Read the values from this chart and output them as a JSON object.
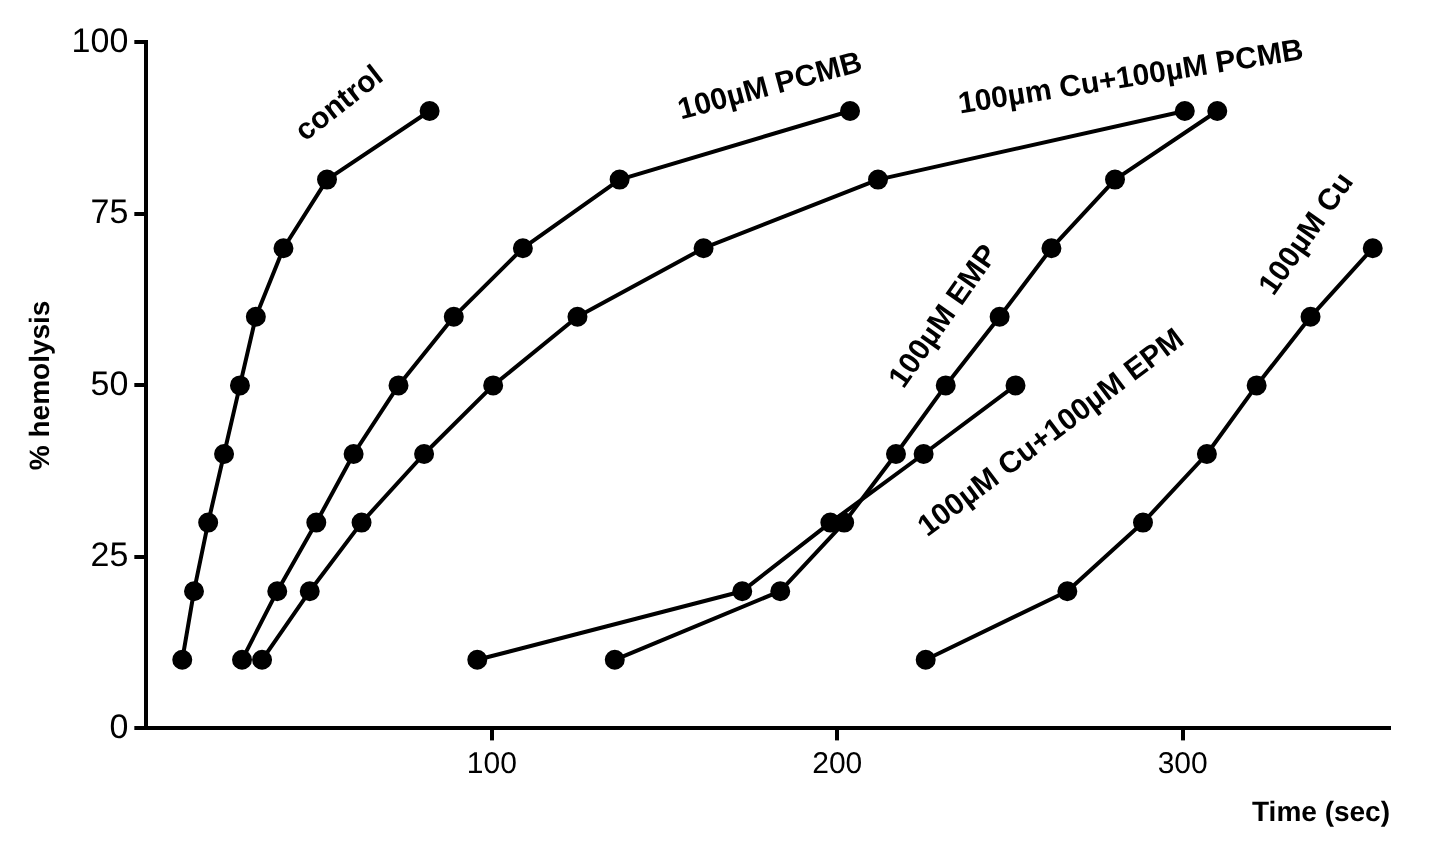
{
  "chart_data": {
    "type": "line",
    "xlabel": "Time (sec)",
    "ylabel": "% hemolysis",
    "xlim": [
      0,
      360
    ],
    "ylim": [
      0,
      100
    ],
    "xticks": [
      100,
      200,
      300
    ],
    "yticks": [
      0,
      25,
      50,
      75,
      100
    ],
    "grid": false,
    "legend": false,
    "marker": "circle",
    "line_style": "solid",
    "series": [
      {
        "name": "control",
        "color": "#000000",
        "x": [
          10.4,
          13.8,
          17.9,
          22.5,
          27.1,
          31.7,
          39.7,
          52.3,
          82
        ],
        "values": [
          10,
          20,
          30,
          40,
          50,
          60,
          70,
          80,
          90
        ]
      },
      {
        "name": "100µM PCMB",
        "color": "#000000",
        "x": [
          27.7,
          37.9,
          49.2,
          60,
          73,
          89,
          109,
          137,
          203.7
        ],
        "values": [
          10,
          20,
          30,
          40,
          50,
          60,
          70,
          80,
          90
        ]
      },
      {
        "name": "100µm Cu+100µM PCMB",
        "color": "#000000",
        "x": [
          33.5,
          47.3,
          62.3,
          80.4,
          100.4,
          124.8,
          161.3,
          211.8,
          300.6
        ],
        "values": [
          10,
          20,
          30,
          40,
          50,
          60,
          70,
          80,
          90
        ]
      },
      {
        "name": "100µM EMP",
        "color": "#000000",
        "x": [
          135.6,
          183.5,
          202,
          217,
          231.4,
          247,
          262,
          280.4,
          310
        ],
        "values": [
          10,
          20,
          30,
          40,
          50,
          60,
          70,
          80,
          90
        ]
      },
      {
        "name": "100µM Cu+100µM EPM",
        "color": "#000000",
        "x": [
          95.8,
          172.5,
          198,
          225,
          251.6
        ],
        "values": [
          10,
          20,
          30,
          40,
          50
        ]
      },
      {
        "name": "100µM Cu",
        "color": "#000000",
        "x": [
          225.6,
          266.6,
          288.5,
          307,
          321.4,
          337,
          355
        ],
        "values": [
          10,
          20,
          30,
          40,
          50,
          60,
          70
        ]
      }
    ]
  }
}
